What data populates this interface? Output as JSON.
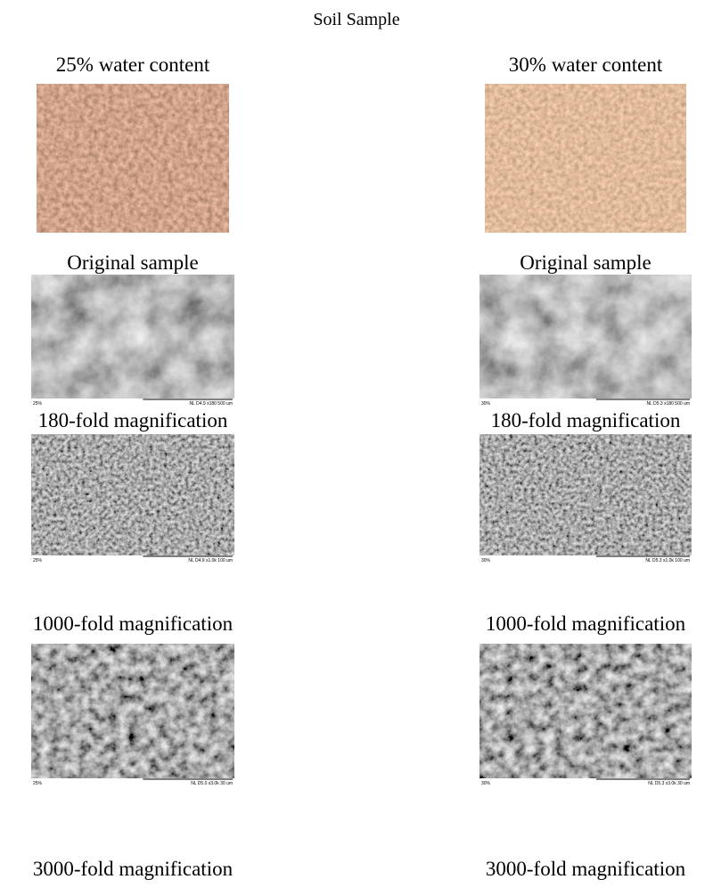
{
  "title": "Soil Sample",
  "columns": [
    {
      "header": "25% water content",
      "panels": [
        {
          "caption": "Original sample"
        },
        {
          "caption": "180-fold magnification",
          "sem_label": "25%",
          "sem_info": "NL D4.9 x180 500 um"
        },
        {
          "caption": "1000-fold magnification",
          "sem_label": "25%",
          "sem_info": "NL D4.9 x1.0k 100 um"
        },
        {
          "caption": "3000-fold magnification",
          "sem_label": "25%",
          "sem_info": "NL D5.0 x3.0k 30 um"
        }
      ]
    },
    {
      "header": "30% water content",
      "panels": [
        {
          "caption": "Original sample"
        },
        {
          "caption": "180-fold magnification",
          "sem_label": "30%",
          "sem_info": "NL D5.3 x180 500 um"
        },
        {
          "caption": "1000-fold magnification",
          "sem_label": "30%",
          "sem_info": "NL D5.3 x1.0k 100 um"
        },
        {
          "caption": "3000-fold magnification",
          "sem_label": "30%",
          "sem_info": "NL D5.3 x3.0k 30 um"
        }
      ]
    }
  ]
}
